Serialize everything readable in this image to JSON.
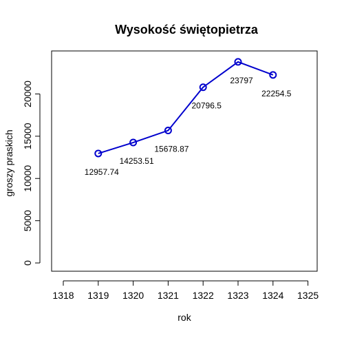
{
  "chart_data": {
    "type": "line",
    "title": "Wysokość świętopietrza",
    "xlabel": "rok",
    "ylabel": "groszy praskich",
    "x": [
      1319,
      1320,
      1321,
      1322,
      1323,
      1324
    ],
    "values": [
      12957.74,
      14253.51,
      15678.87,
      20796.5,
      23797,
      22254.5
    ],
    "data_labels": [
      "12957.74",
      "14253.51",
      "15678.87",
      "20796.5",
      "23797",
      "22254.5"
    ],
    "xlim": [
      1318,
      1325
    ],
    "ylim": [
      0,
      24000
    ],
    "x_ticks": [
      1318,
      1319,
      1320,
      1321,
      1322,
      1323,
      1324,
      1325
    ],
    "y_ticks": [
      0,
      5000,
      10000,
      15000,
      20000
    ],
    "x_tick_labels": [
      "1318",
      "1319",
      "1320",
      "1321",
      "1322",
      "1323",
      "1324",
      "1325"
    ],
    "y_tick_labels": [
      "0",
      "5000",
      "10000",
      "15000",
      "20000"
    ],
    "line_color": "#0000CD",
    "marker": "open-circle",
    "grid": false,
    "legend": "none"
  }
}
